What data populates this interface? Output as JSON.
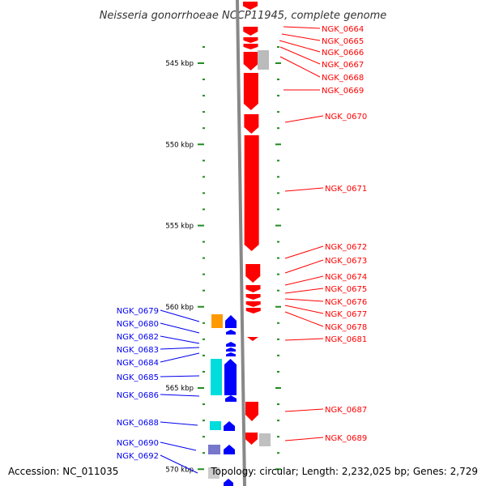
{
  "title": "Neisseria gonorrhoeae NCCP11945, complete genome",
  "accession": "Accession: NC_011035",
  "topology": "Topology: circular; Length: 2,232,025 bp; Genes: 2,729",
  "kbp_ticks": [
    {
      "label": "545 kbp",
      "kbp": 545
    },
    {
      "label": "550 kbp",
      "kbp": 550
    },
    {
      "label": "555 kbp",
      "kbp": 555
    },
    {
      "label": "560 kbp",
      "kbp": 560
    },
    {
      "label": "565 kbp",
      "kbp": 565
    },
    {
      "label": "570 kbp",
      "kbp": 570
    }
  ],
  "colors": {
    "forward_gene": "#ff0000",
    "reverse_gene": "#0000ff",
    "label_forward": "#ff0000",
    "label_reverse": "#0000ee",
    "axis": "#888888",
    "tick": "#228b22"
  },
  "forward_labels": [
    "NGK_0664",
    "NGK_0665",
    "NGK_0666",
    "NGK_0667",
    "NGK_0668",
    "NGK_0669",
    "NGK_0670",
    "NGK_0671",
    "NGK_0672",
    "NGK_0673",
    "NGK_0674",
    "NGK_0675",
    "NGK_0676",
    "NGK_0677",
    "NGK_0678",
    "NGK_0681",
    "NGK_0687",
    "NGK_0689"
  ],
  "reverse_labels": [
    "NGK_0679",
    "NGK_0680",
    "NGK_0682",
    "NGK_0683",
    "NGK_0684",
    "NGK_0685",
    "NGK_0686",
    "NGK_0688",
    "NGK_0690",
    "NGK_0692"
  ]
}
